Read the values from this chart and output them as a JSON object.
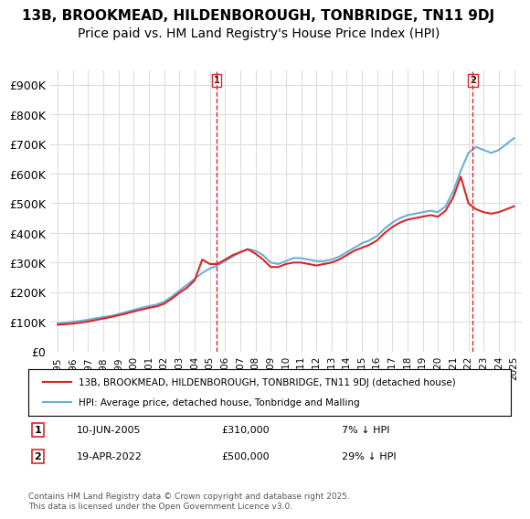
{
  "title": "13B, BROOKMEAD, HILDENBOROUGH, TONBRIDGE, TN11 9DJ",
  "subtitle": "Price paid vs. HM Land Registry's House Price Index (HPI)",
  "xlabel": "",
  "ylabel": "",
  "ylim": [
    0,
    950000
  ],
  "yticks": [
    0,
    100000,
    200000,
    300000,
    400000,
    500000,
    600000,
    700000,
    800000,
    900000
  ],
  "ytick_labels": [
    "£0",
    "£100K",
    "£200K",
    "£300K",
    "£400K",
    "£500K",
    "£600K",
    "£700K",
    "£800K",
    "£900K"
  ],
  "hpi_color": "#6baed6",
  "price_color": "#d62728",
  "sale1_date": "10-JUN-2005",
  "sale1_price": 310000,
  "sale1_label": "1",
  "sale1_pct": "7% ↓ HPI",
  "sale2_date": "19-APR-2022",
  "sale2_price": 500000,
  "sale2_label": "2",
  "sale2_pct": "29% ↓ HPI",
  "legend_line1": "13B, BROOKMEAD, HILDENBOROUGH, TONBRIDGE, TN11 9DJ (detached house)",
  "legend_line2": "HPI: Average price, detached house, Tonbridge and Malling",
  "footnote": "Contains HM Land Registry data © Crown copyright and database right 2025.\nThis data is licensed under the Open Government Licence v3.0.",
  "background_color": "#ffffff",
  "grid_color": "#dddddd",
  "title_fontsize": 11,
  "subtitle_fontsize": 10,
  "tick_fontsize": 9,
  "hpi_data": {
    "years": [
      1995,
      1995.5,
      1996,
      1996.5,
      1997,
      1997.5,
      1998,
      1998.5,
      1999,
      1999.5,
      2000,
      2000.5,
      2001,
      2001.5,
      2002,
      2002.5,
      2003,
      2003.5,
      2004,
      2004.5,
      2005,
      2005.5,
      2006,
      2006.5,
      2007,
      2007.5,
      2008,
      2008.5,
      2009,
      2009.5,
      2010,
      2010.5,
      2011,
      2011.5,
      2012,
      2012.5,
      2013,
      2013.5,
      2014,
      2014.5,
      2015,
      2015.5,
      2016,
      2016.5,
      2017,
      2017.5,
      2018,
      2018.5,
      2019,
      2019.5,
      2020,
      2020.5,
      2021,
      2021.5,
      2022,
      2022.5,
      2023,
      2023.5,
      2024,
      2024.5,
      2025
    ],
    "values": [
      95000,
      97000,
      100000,
      103000,
      107000,
      112000,
      116000,
      120000,
      126000,
      133000,
      140000,
      147000,
      153000,
      158000,
      168000,
      185000,
      205000,
      225000,
      245000,
      265000,
      280000,
      290000,
      305000,
      320000,
      335000,
      345000,
      340000,
      325000,
      300000,
      295000,
      305000,
      315000,
      315000,
      310000,
      305000,
      305000,
      310000,
      320000,
      335000,
      350000,
      365000,
      375000,
      390000,
      415000,
      435000,
      450000,
      460000,
      465000,
      470000,
      475000,
      470000,
      490000,
      540000,
      610000,
      670000,
      690000,
      680000,
      670000,
      680000,
      700000,
      720000
    ]
  },
  "price_data": {
    "years": [
      1995,
      1995.5,
      1996,
      1996.5,
      1997,
      1997.5,
      1998,
      1998.5,
      1999,
      1999.5,
      2000,
      2000.5,
      2001,
      2001.5,
      2002,
      2002.5,
      2003,
      2003.5,
      2004,
      2004.5,
      2005,
      2005.5,
      2006,
      2006.5,
      2007,
      2007.5,
      2008,
      2008.5,
      2009,
      2009.5,
      2010,
      2010.5,
      2011,
      2011.5,
      2012,
      2012.5,
      2013,
      2013.5,
      2014,
      2014.5,
      2015,
      2015.5,
      2016,
      2016.5,
      2017,
      2017.5,
      2018,
      2018.5,
      2019,
      2019.5,
      2020,
      2020.5,
      2021,
      2021.5,
      2022,
      2022.5,
      2023,
      2023.5,
      2024,
      2024.5,
      2025
    ],
    "values": [
      90000,
      92000,
      94000,
      97000,
      101000,
      106000,
      111000,
      116000,
      122000,
      128000,
      135000,
      141000,
      147000,
      152000,
      161000,
      178000,
      198000,
      215000,
      240000,
      310000,
      295000,
      295000,
      310000,
      325000,
      335000,
      345000,
      330000,
      310000,
      285000,
      285000,
      295000,
      300000,
      300000,
      295000,
      290000,
      295000,
      300000,
      310000,
      325000,
      340000,
      350000,
      360000,
      375000,
      400000,
      420000,
      435000,
      445000,
      450000,
      455000,
      460000,
      455000,
      475000,
      520000,
      590000,
      500000,
      480000,
      470000,
      465000,
      470000,
      480000,
      490000
    ]
  },
  "sale1_x": 2005.44,
  "sale2_x": 2022.29
}
